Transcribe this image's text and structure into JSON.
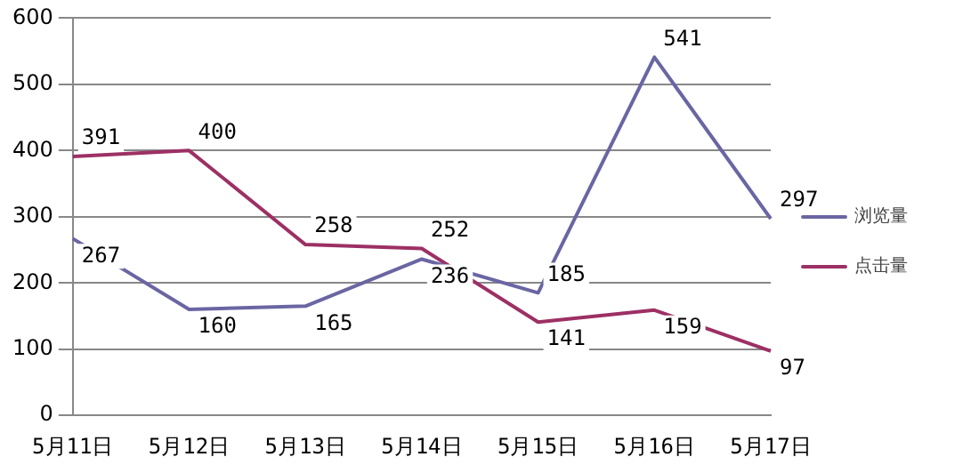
{
  "chart_data": {
    "type": "line",
    "categories": [
      "5月11日",
      "5月12日",
      "5月13日",
      "5月14日",
      "5月15日",
      "5月16日",
      "5月17日"
    ],
    "series": [
      {
        "name": "浏览量",
        "color": "#6a66a3",
        "values": [
          267,
          160,
          165,
          236,
          185,
          541,
          297
        ]
      },
      {
        "name": "点击量",
        "color": "#9c3064",
        "values": [
          391,
          400,
          258,
          252,
          141,
          159,
          97
        ]
      }
    ],
    "ylim": [
      0,
      600
    ],
    "yticks": [
      0,
      100,
      200,
      300,
      400,
      500,
      600
    ],
    "grid": "y",
    "legend": "right",
    "marker": "none",
    "line_style": "solid",
    "data_labels": true
  }
}
